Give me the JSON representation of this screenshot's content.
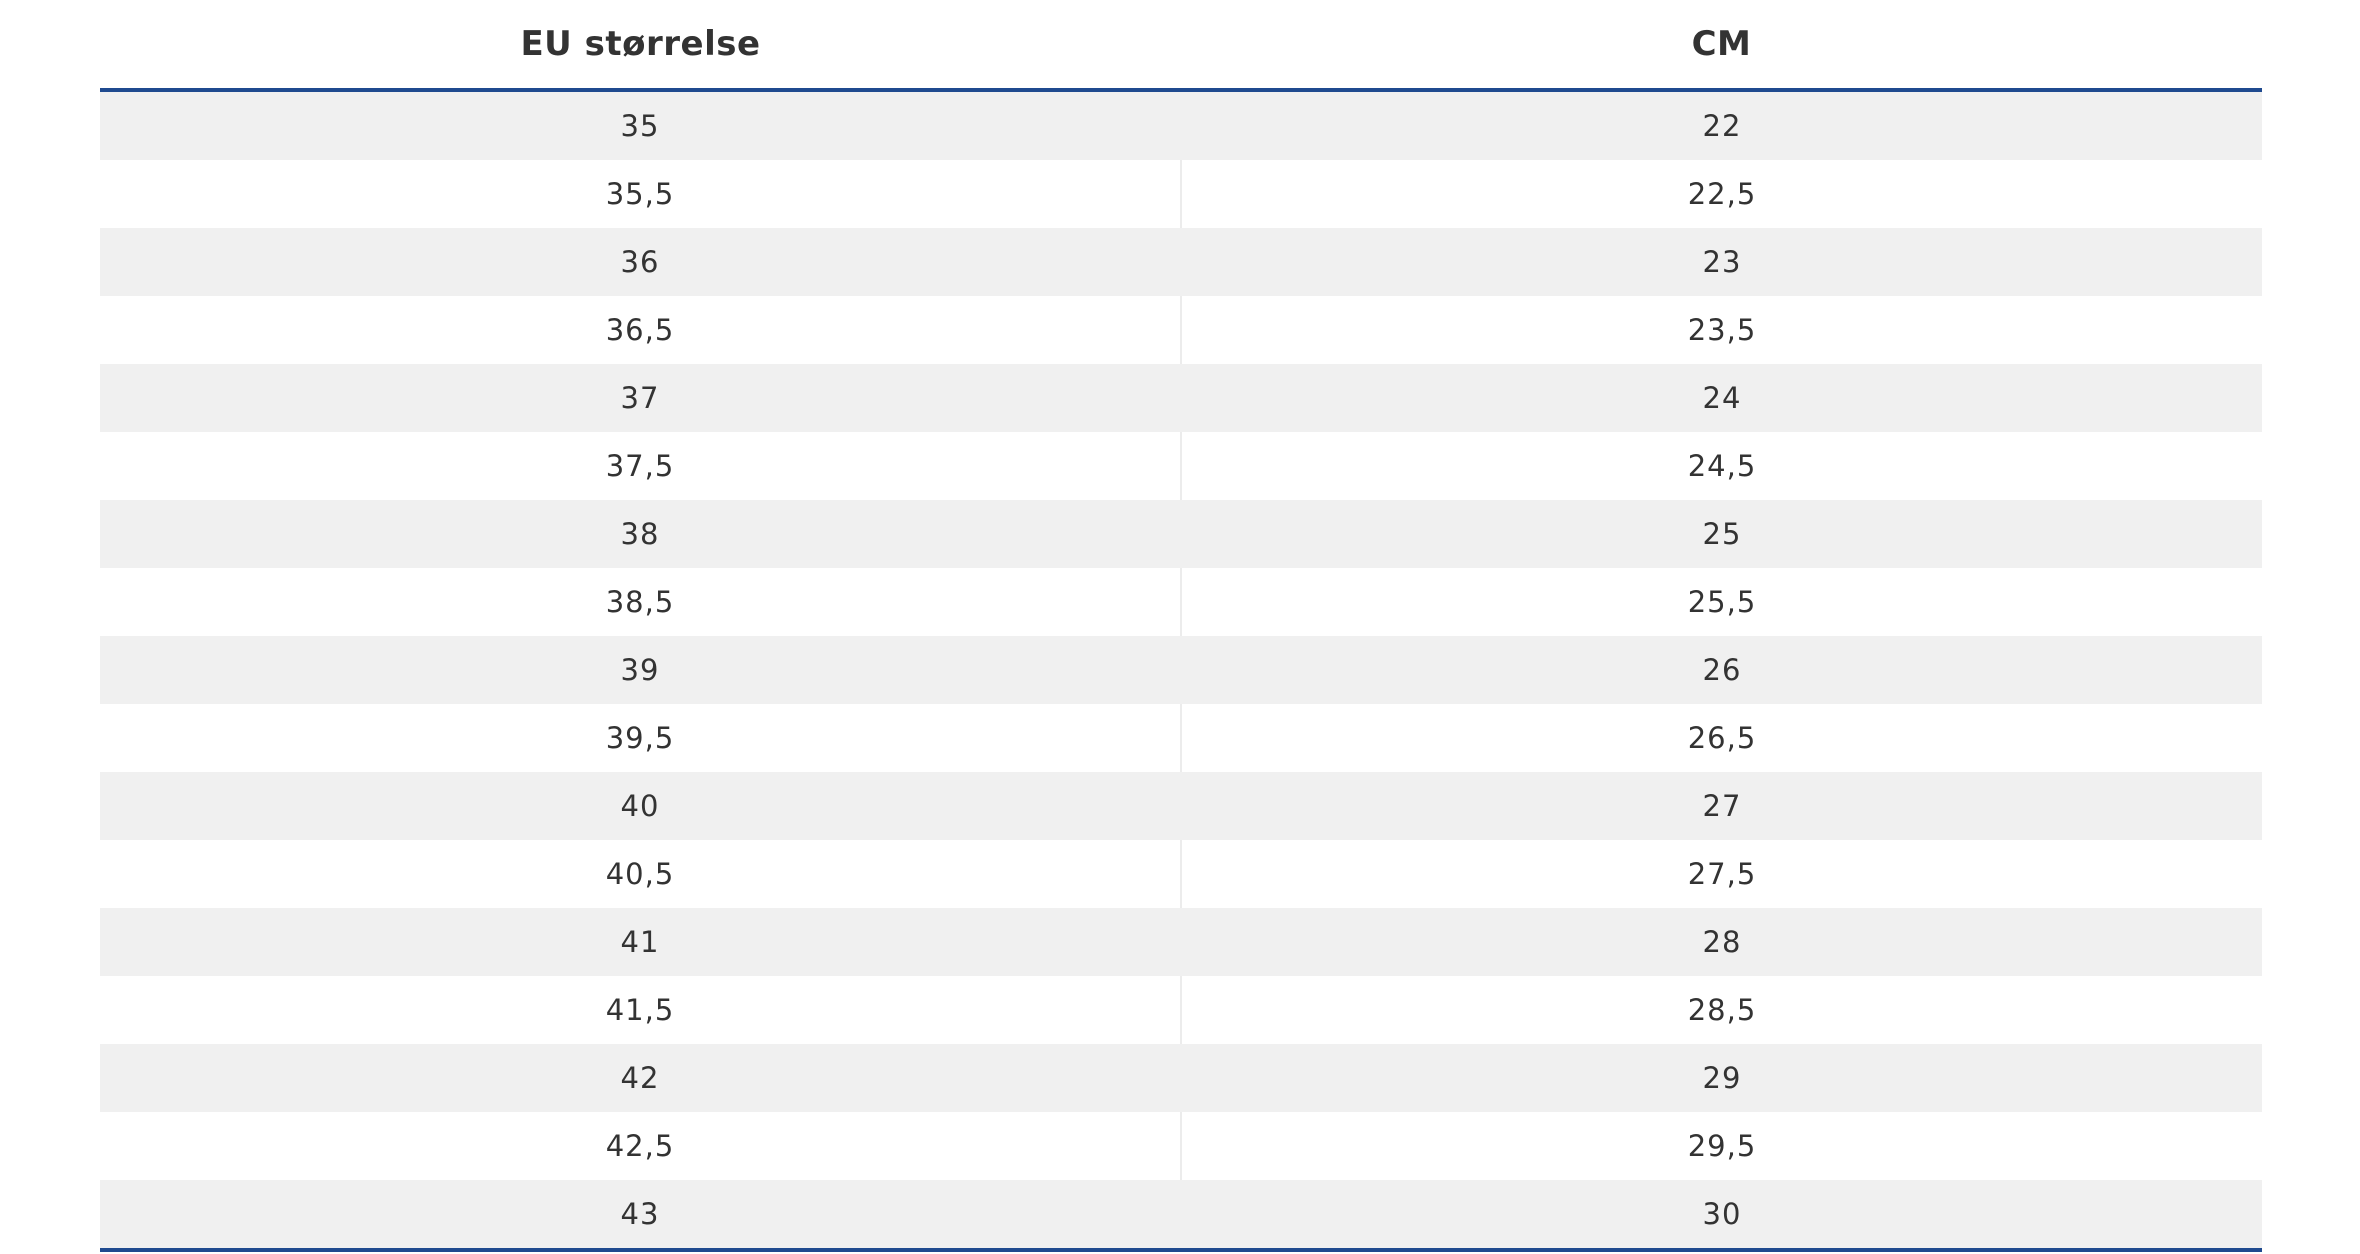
{
  "table": {
    "headers": [
      "EU størrelse",
      "CM"
    ],
    "rows": [
      [
        "35",
        "22"
      ],
      [
        "35,5",
        "22,5"
      ],
      [
        "36",
        "23"
      ],
      [
        "36,5",
        "23,5"
      ],
      [
        "37",
        "24"
      ],
      [
        "37,5",
        "24,5"
      ],
      [
        "38",
        "25"
      ],
      [
        "38,5",
        "25,5"
      ],
      [
        "39",
        "26"
      ],
      [
        "39,5",
        "26,5"
      ],
      [
        "40",
        "27"
      ],
      [
        "40,5",
        "27,5"
      ],
      [
        "41",
        "28"
      ],
      [
        "41,5",
        "28,5"
      ],
      [
        "42",
        "29"
      ],
      [
        "42,5",
        "29,5"
      ],
      [
        "43",
        "30"
      ]
    ]
  },
  "colors": {
    "accent_rule": "#1f4a8f",
    "stripe": "#f0f0f0",
    "text": "#333333"
  }
}
